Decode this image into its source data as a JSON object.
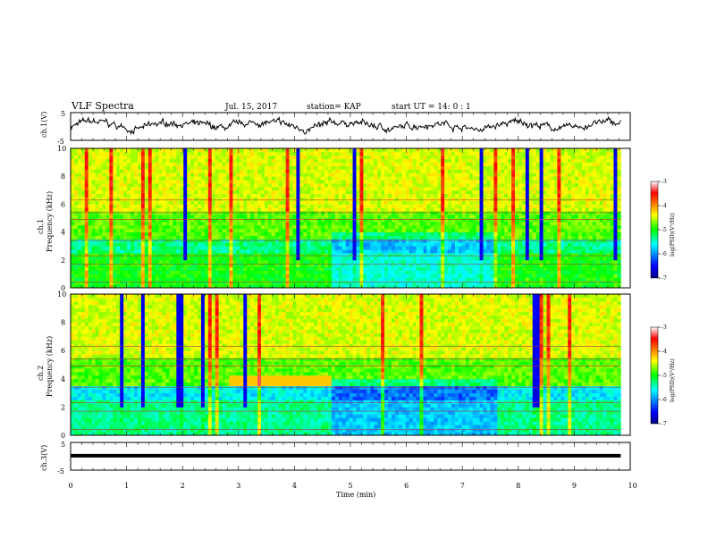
{
  "header": {
    "title": "VLF Spectra",
    "date": "Jul. 15, 2017",
    "station": "station= KAP",
    "start": "start  UT =   14: 0  : 1"
  },
  "chart_data": [
    {
      "type": "line",
      "panel": "ch1_waveform",
      "ylabel": "ch.1(V)",
      "ylim": [
        -5,
        5
      ],
      "yticks": [
        "5",
        "-5"
      ],
      "xlim": [
        0,
        10
      ],
      "trace_color": "#000000"
    },
    {
      "type": "heatmap",
      "panel": "ch1_spectrogram",
      "ylabel_channel": "ch.1",
      "ylabel": "Frequency (kHz)",
      "ylim": [
        0,
        10
      ],
      "yticks": [
        "0",
        "2",
        "4",
        "6",
        "8",
        "10"
      ],
      "xlim": [
        0,
        10
      ],
      "colorbar": {
        "label": "log(PSD)(V²/Hz)",
        "ticks": [
          "-3",
          "-4",
          "-5",
          "-6",
          "-7"
        ],
        "range": [
          -7,
          -3
        ]
      }
    },
    {
      "type": "heatmap",
      "panel": "ch2_spectrogram",
      "ylabel_channel": "ch.2",
      "ylabel": "Frequency (kHz)",
      "ylim": [
        0,
        10
      ],
      "yticks": [
        "0",
        "2",
        "4",
        "6",
        "8",
        "10"
      ],
      "xlim": [
        0,
        10
      ],
      "colorbar": {
        "label": "log(PSD)(V²/Hz)",
        "ticks": [
          "-3",
          "-4",
          "-5",
          "-6",
          "-7"
        ],
        "range": [
          -7,
          -3
        ]
      }
    },
    {
      "type": "line",
      "panel": "ch3_waveform",
      "ylabel": "ch.3(V)",
      "ylim": [
        -5,
        5
      ],
      "yticks": [
        "5",
        "-5"
      ],
      "level": 0.2,
      "xlim": [
        0,
        10
      ],
      "xlabel": "Time (min)",
      "xticks": [
        "0",
        "1",
        "2",
        "3",
        "4",
        "5",
        "6",
        "7",
        "8",
        "9",
        "10"
      ]
    }
  ]
}
